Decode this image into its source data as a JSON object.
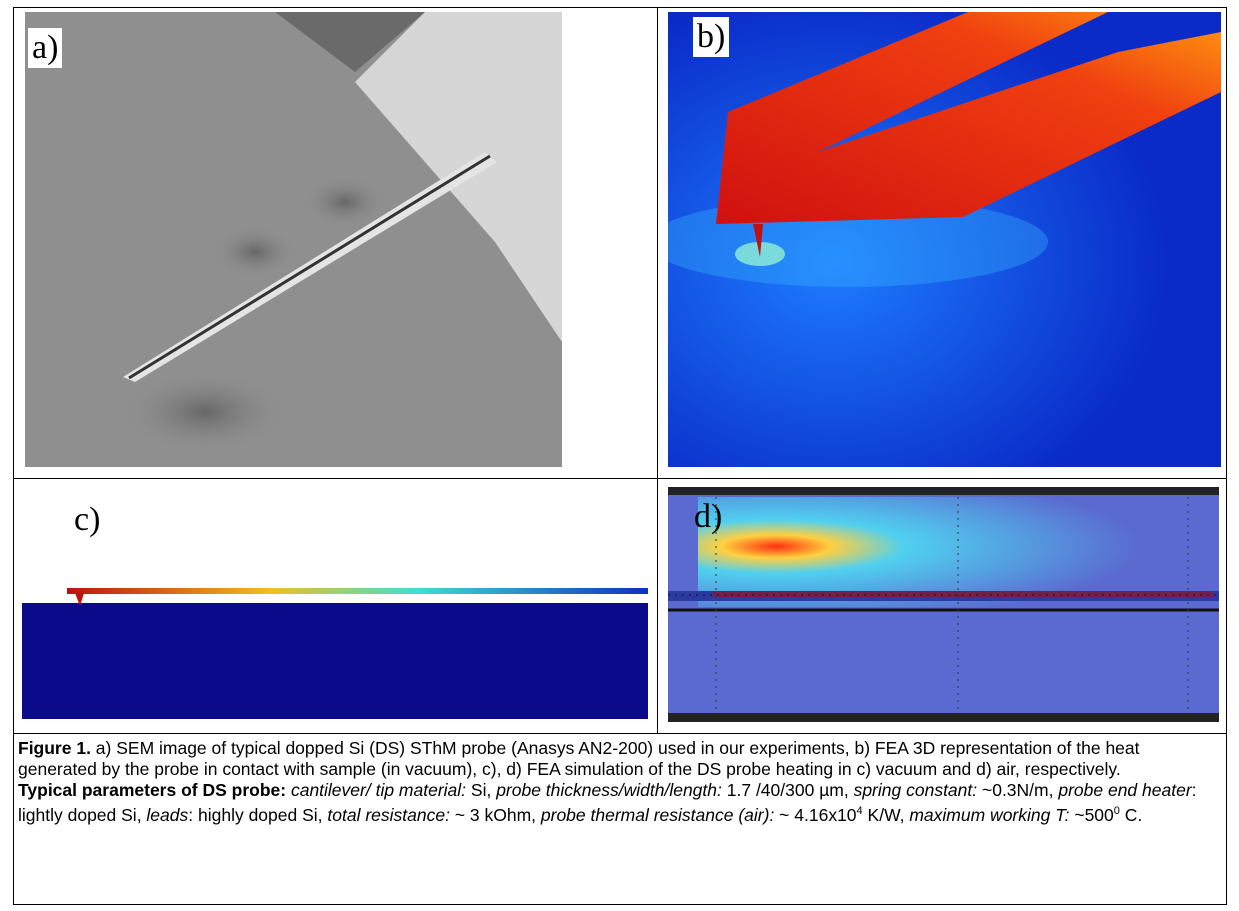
{
  "panels": {
    "a": "a)",
    "b": "b)",
    "c": "c)",
    "d": "d)"
  },
  "caption": {
    "figure_label": "Figure 1.",
    "figure_text": " a) SEM image of typical dopped Si (DS) SThM probe (Anasys AN2-200) used in our experiments, b) FEA 3D representation of the heat generated by the probe in contact with sample (in vacuum), c), d) FEA simulation of the DS probe heating in c) vacuum and d) air, respectively.",
    "params_label": "Typical parameters of DS probe:",
    "params": [
      {
        "text": " cantilever/ tip material:",
        "style": "italic"
      },
      {
        "text": " Si, ",
        "style": "normal"
      },
      {
        "text": "probe thickness/width/length:",
        "style": "italic"
      },
      {
        "text": " 1.7 /40/300 µm, ",
        "style": "normal"
      },
      {
        "text": "spring constant:",
        "style": "italic"
      },
      {
        "text": " ~0.3N/m, ",
        "style": "normal"
      },
      {
        "text": "probe end heater",
        "style": "italic"
      },
      {
        "text": ": lightly doped Si, ",
        "style": "normal"
      },
      {
        "text": "leads",
        "style": "italic"
      },
      {
        "text": ":  highly doped Si, ",
        "style": "normal"
      },
      {
        "text": "total resistance:",
        "style": "italic"
      },
      {
        "text": " ~ 3 kOhm, ",
        "style": "normal"
      },
      {
        "text": "probe thermal resistance (air):",
        "style": "italic"
      },
      {
        "text": " ~ 4.16x10",
        "style": "normal"
      },
      {
        "text": "4",
        "style": "sup"
      },
      {
        "text": " K/W, ",
        "style": "normal"
      },
      {
        "text": "maximum working T:",
        "style": "italic"
      },
      {
        "text": " ~500",
        "style": "normal"
      },
      {
        "text": "0",
        "style": "sup"
      },
      {
        "text": " C.",
        "style": "normal"
      }
    ]
  }
}
